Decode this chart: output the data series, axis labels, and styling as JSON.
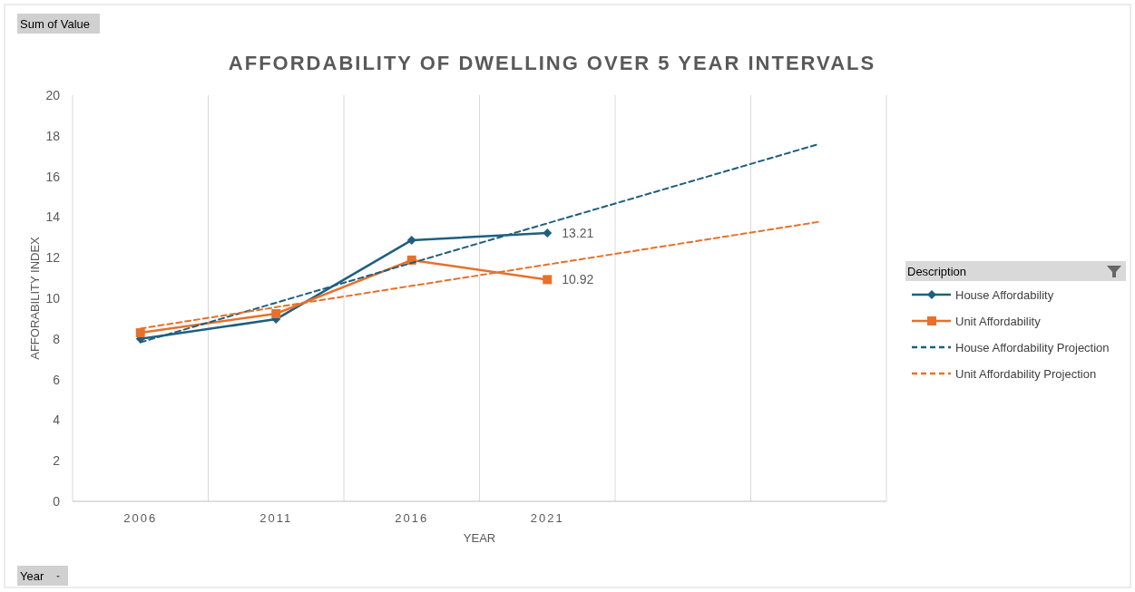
{
  "chart_data": {
    "type": "line",
    "title": "AFFORDABILITY OF DWELLING OVER 5 YEAR INTERVALS",
    "xlabel": "YEAR",
    "ylabel": "AFFORABILITY INDEX",
    "legend_title": "Description",
    "categories": [
      "2006",
      "2011",
      "2016",
      "2021",
      null,
      null
    ],
    "series": [
      {
        "name": "House Affordability",
        "color": "#1f5f7f",
        "values": [
          8.0,
          8.97,
          12.86,
          13.21,
          null,
          null
        ],
        "marker": "diamond",
        "line_style": "solid",
        "value_labels": [
          null,
          null,
          null,
          "13.21",
          null,
          null
        ]
      },
      {
        "name": "Unit Affordability",
        "color": "#e8702a",
        "values": [
          8.3,
          9.24,
          11.88,
          10.92,
          null,
          null
        ],
        "marker": "square",
        "line_style": "solid",
        "value_labels": [
          null,
          null,
          null,
          "10.92",
          null,
          null
        ]
      },
      {
        "name": "House Affordability Projection",
        "color": "#1f5f7f",
        "values": [
          7.83,
          9.78,
          11.74,
          13.69,
          15.64,
          17.59
        ],
        "marker": "none",
        "line_style": "dashed"
      },
      {
        "name": "Unit Affordability Projection",
        "color": "#e8702a",
        "values": [
          8.51,
          9.56,
          10.61,
          11.66,
          12.71,
          13.76
        ],
        "marker": "none",
        "line_style": "dashed"
      }
    ],
    "ylim": [
      0,
      20
    ],
    "yticks": [
      0,
      2,
      4,
      6,
      8,
      10,
      12,
      14,
      16,
      18,
      20
    ],
    "grid": "x",
    "legend": "right",
    "annotations": [
      "Sum of Value",
      "Year"
    ]
  }
}
